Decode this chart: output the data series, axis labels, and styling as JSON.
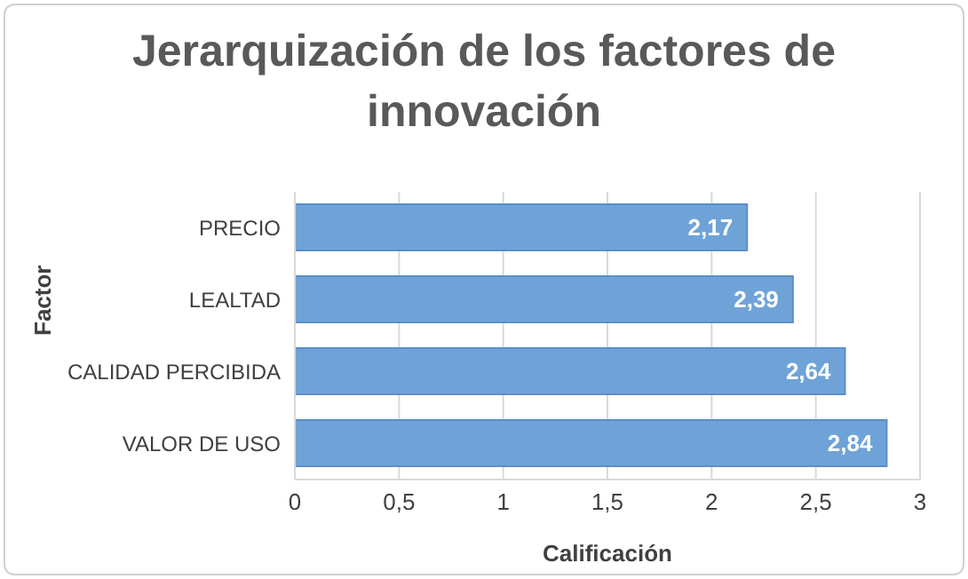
{
  "chart_data": {
    "type": "bar",
    "orientation": "horizontal",
    "title": "Jerarquización de los factores de innovación",
    "xlabel": "Calificación",
    "ylabel": "Factor",
    "categories": [
      "PRECIO",
      "LEALTAD",
      "CALIDAD PERCIBIDA",
      "VALOR DE USO"
    ],
    "values": [
      2.17,
      2.39,
      2.64,
      2.84
    ],
    "color": "#6fa3d8",
    "value_labels": [
      "2,17",
      "2,39",
      "2,64",
      "2,84"
    ],
    "xlim": [
      0,
      3
    ],
    "xticks": [
      0,
      {
        "value": 0.5,
        "label": "0,5"
      },
      1,
      {
        "value": 1.5,
        "label": "1,5"
      },
      2,
      {
        "value": 2.5,
        "label": "2,5"
      },
      3
    ],
    "grid": "x"
  }
}
